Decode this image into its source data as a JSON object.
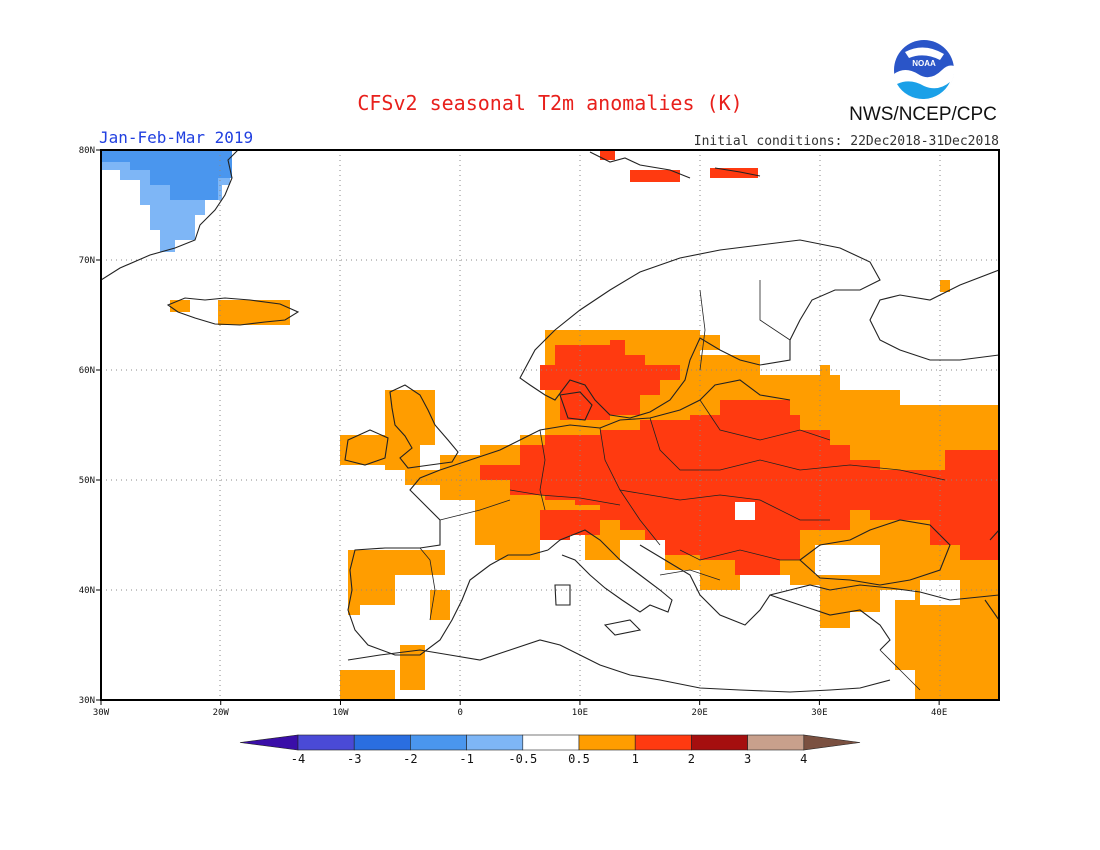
{
  "title": "CFSv2 seasonal T2m anomalies (K)",
  "valid_period": "Jan-Feb-Mar 2019",
  "initial_conditions": "Initial conditions: 22Dec2018-31Dec2018",
  "organization": "NWS/NCEP/CPC",
  "logo_text": "NOAA",
  "map": {
    "region": "Europe",
    "lon_range": [
      -30,
      45
    ],
    "lat_range": [
      30,
      80
    ],
    "lon_ticks": [
      "30W",
      "20W",
      "10W",
      "0",
      "10E",
      "20E",
      "30E",
      "40E"
    ],
    "lat_ticks": [
      "30N",
      "40N",
      "50N",
      "60N",
      "70N",
      "80N"
    ]
  },
  "colorbar": {
    "labels": [
      "-4",
      "-3",
      "-2",
      "-1",
      "-0.5",
      "0.5",
      "1",
      "2",
      "3",
      "4"
    ],
    "colors": [
      "#3a0ea8",
      "#4a4ad6",
      "#2a6ee0",
      "#4a96ee",
      "#7eb6f6",
      "#ffffff",
      "#ff9d00",
      "#ff3a10",
      "#a50f0f",
      "#c8a08c",
      "#7a5040"
    ]
  },
  "palette": {
    "light_blue": "#7eb6f6",
    "mid_blue": "#4a96ee",
    "orange": "#ff9d00",
    "red": "#ff3a10"
  }
}
